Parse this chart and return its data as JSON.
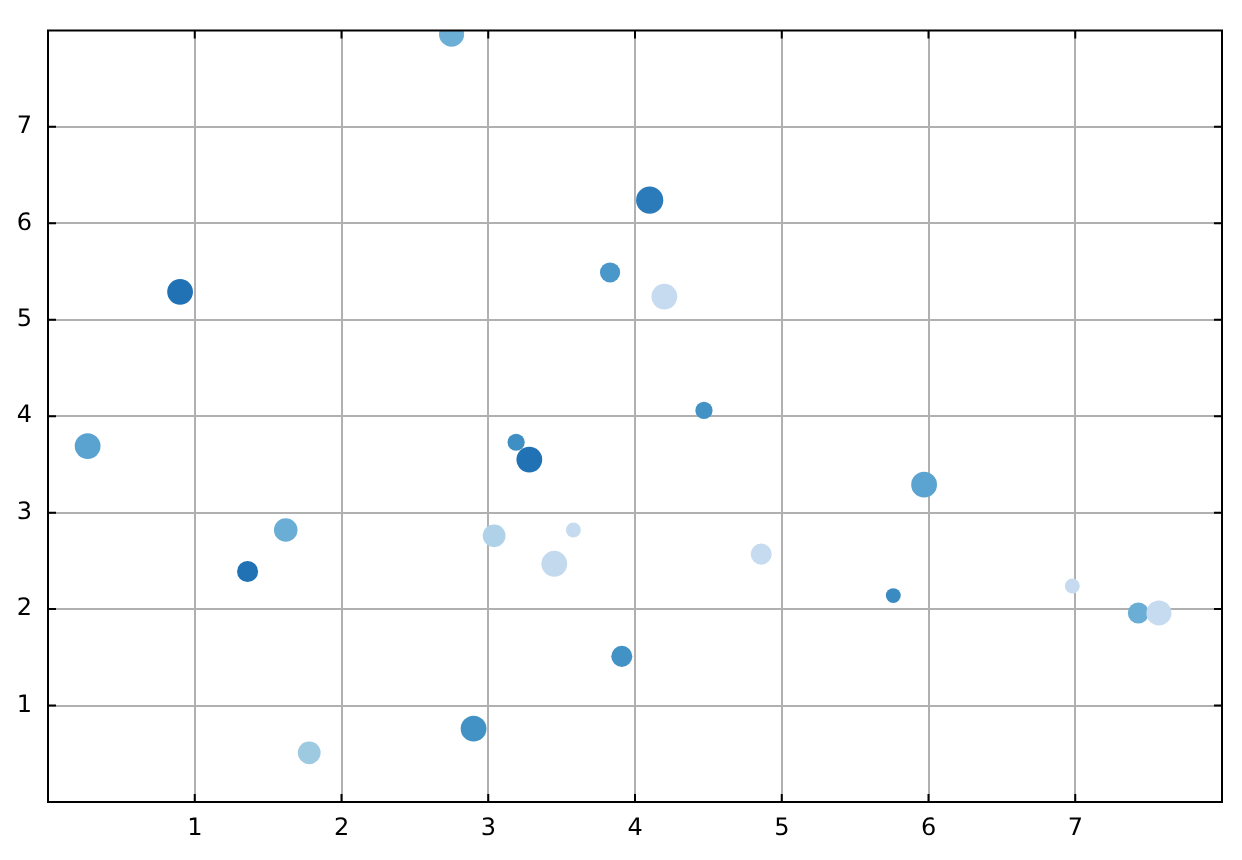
{
  "chart_data": {
    "type": "bubble",
    "x": [
      2.75,
      4.1,
      0.9,
      3.83,
      4.2,
      0.27,
      4.47,
      3.19,
      3.28,
      5.97,
      1.62,
      3.04,
      3.58,
      3.45,
      1.36,
      4.86,
      5.76,
      6.98,
      7.43,
      7.57,
      3.91,
      2.9,
      1.78
    ],
    "values": [
      7.96,
      6.24,
      5.29,
      5.49,
      5.24,
      3.69,
      4.06,
      3.73,
      3.55,
      3.29,
      2.82,
      2.76,
      2.82,
      2.47,
      2.39,
      2.57,
      2.14,
      2.24,
      1.96,
      1.96,
      1.51,
      0.76,
      0.51
    ],
    "sizes": [
      0.85,
      1,
      0.9,
      0.55,
      0.9,
      0.9,
      0.4,
      0.4,
      0.9,
      0.9,
      0.75,
      0.7,
      0.3,
      0.9,
      0.6,
      0.6,
      0.3,
      0.3,
      0.6,
      0.85,
      0.6,
      0.9,
      0.7
    ],
    "colors": [
      "#6baed6",
      "#2b7bba",
      "#2171b5",
      "#4a98c9",
      "#c6dbef",
      "#5aa2d0",
      "#4292c6",
      "#3f8fc5",
      "#2171b5",
      "#5ba3d0",
      "#6aaed6",
      "#b0d2e8",
      "#c6dbef",
      "#c2d9ee",
      "#2171b5",
      "#c6dbef",
      "#3a8bc2",
      "#c6dbef",
      "#6aaed6",
      "#c6dbef",
      "#4292c6",
      "#4292c6",
      "#9ecae1"
    ],
    "xlim": [
      0,
      8
    ],
    "ylim": [
      0,
      8
    ],
    "xticks": [
      1,
      2,
      3,
      4,
      5,
      6,
      7
    ],
    "yticks": [
      1,
      2,
      3,
      4,
      5,
      6,
      7
    ],
    "grid": true,
    "marker": "circle"
  }
}
